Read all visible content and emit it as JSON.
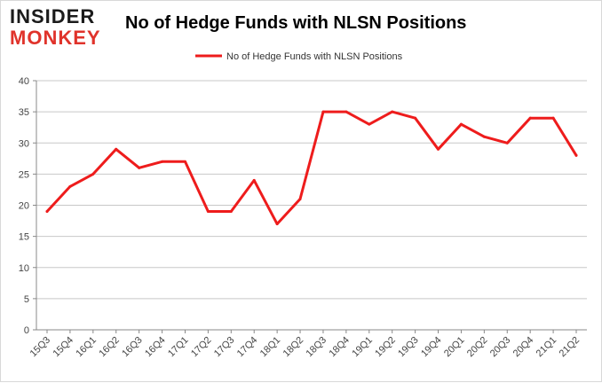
{
  "logo": {
    "line1": "INSIDER",
    "line2": "MONKEY"
  },
  "chart_data": {
    "type": "line",
    "title": "No of Hedge Funds with NLSN Positions",
    "xlabel": "",
    "ylabel": "",
    "categories": [
      "15Q3",
      "15Q4",
      "16Q1",
      "16Q2",
      "16Q3",
      "16Q4",
      "17Q1",
      "17Q2",
      "17Q3",
      "17Q4",
      "18Q1",
      "18Q2",
      "18Q3",
      "18Q4",
      "19Q1",
      "19Q2",
      "19Q3",
      "19Q4",
      "20Q1",
      "20Q2",
      "20Q3",
      "20Q4",
      "21Q1",
      "21Q2"
    ],
    "series": [
      {
        "name": "No of Hedge Funds with NLSN Positions",
        "color": "#ee1c1c",
        "values": [
          19,
          23,
          25,
          29,
          26,
          27,
          27,
          19,
          19,
          24,
          17,
          21,
          35,
          35,
          33,
          35,
          34,
          29,
          33,
          31,
          30,
          34,
          34,
          28
        ]
      }
    ],
    "ylim": [
      0,
      40
    ],
    "yticks": [
      0,
      5,
      10,
      15,
      20,
      25,
      30,
      35,
      40
    ],
    "grid": true,
    "legend": "top-center"
  }
}
